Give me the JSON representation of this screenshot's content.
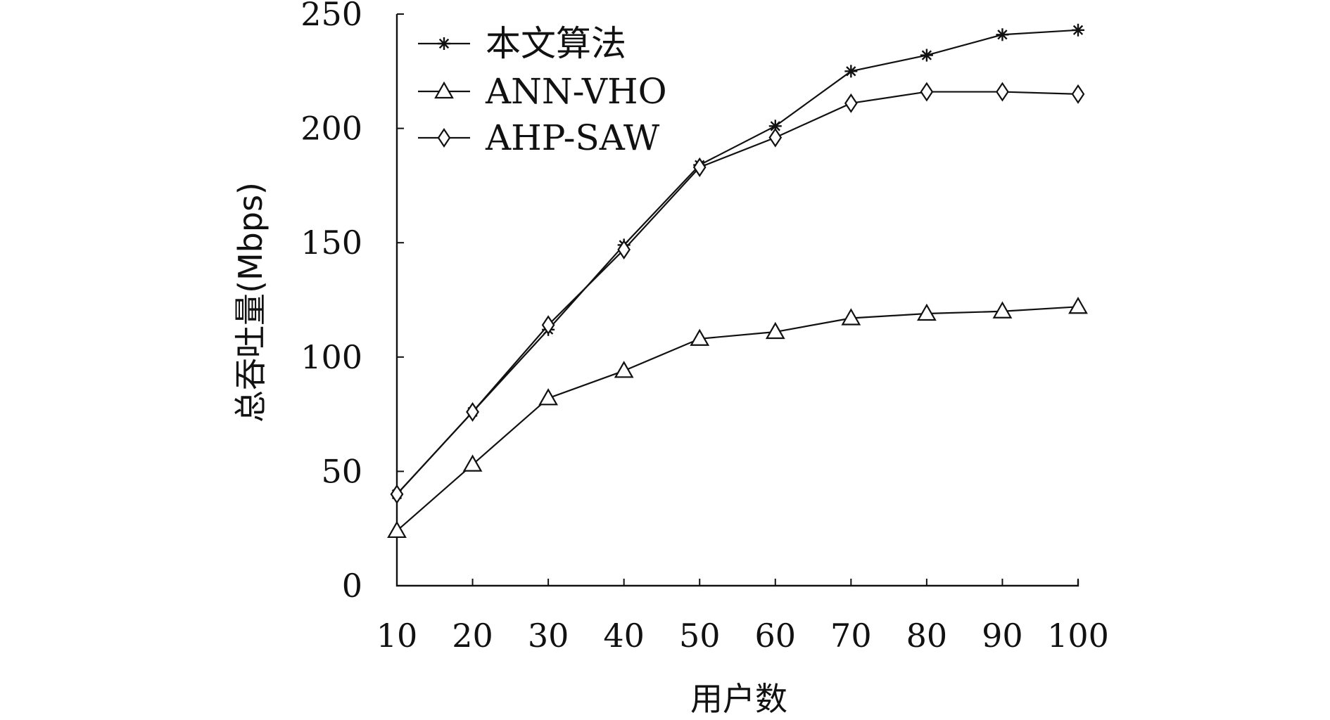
{
  "chart_data": {
    "type": "line",
    "xlabel": "用户数",
    "ylabel": "总吞吐量(Mbps)",
    "x": [
      10,
      20,
      30,
      40,
      50,
      60,
      70,
      80,
      90,
      100
    ],
    "xlim": [
      10,
      100
    ],
    "ylim": [
      0,
      250
    ],
    "xticks": [
      "10",
      "20",
      "30",
      "40",
      "50",
      "60",
      "70",
      "80",
      "90",
      "100"
    ],
    "yticks": [
      "0",
      "50",
      "100",
      "150",
      "200",
      "250"
    ],
    "grid": false,
    "legend_position": "top-left",
    "series": [
      {
        "name": "本文算法",
        "marker": "star",
        "values": [
          40,
          76,
          112,
          149,
          184,
          201,
          225,
          232,
          241,
          243
        ]
      },
      {
        "name": "ANN-VHO",
        "marker": "triangle",
        "values": [
          24,
          53,
          82,
          94,
          108,
          111,
          117,
          119,
          120,
          122
        ]
      },
      {
        "name": "AHP-SAW",
        "marker": "diamond",
        "values": [
          40,
          76,
          114,
          147,
          183,
          196,
          211,
          216,
          216,
          215
        ]
      }
    ],
    "colors": {
      "line": "#111111",
      "background": "#ffffff"
    }
  }
}
